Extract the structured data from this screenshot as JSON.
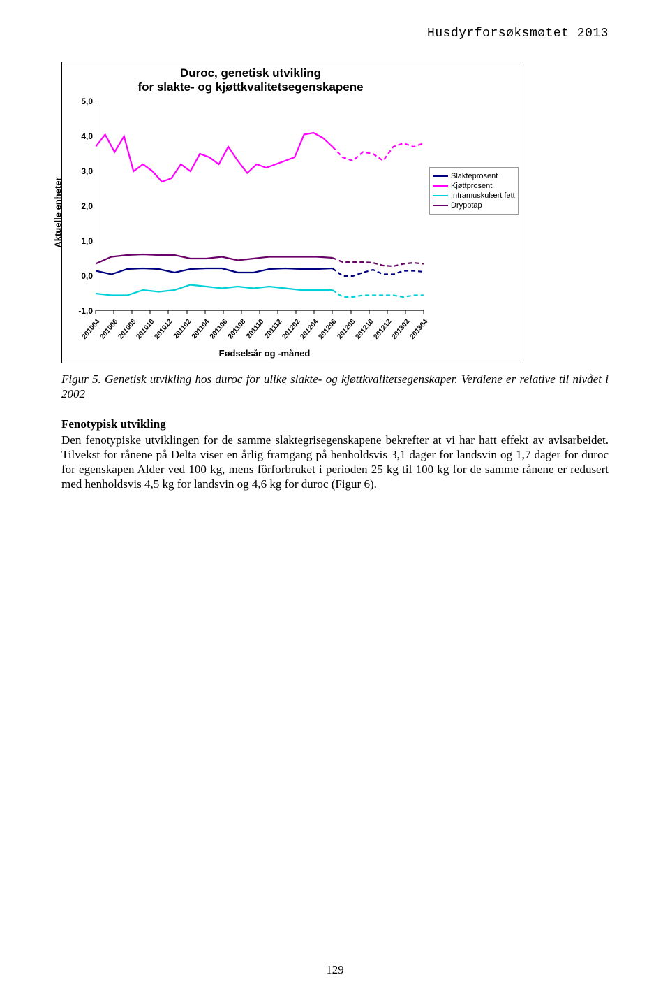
{
  "running_header": "Husdyrforsøksmøtet 2013",
  "page_number": "129",
  "chart": {
    "type": "line",
    "title_line1": "Duroc, genetisk utvikling",
    "title_line2": "for slakte- og kjøttkvalitetsegenskapene",
    "y_axis_label": "Aktuelle enheter",
    "x_axis_label": "Fødselsår og -måned",
    "ylim": [
      -1.0,
      5.0
    ],
    "ytick_step": 1.0,
    "y_ticks": [
      "-1,0",
      "0,0",
      "1,0",
      "2,0",
      "3,0",
      "4,0",
      "5,0"
    ],
    "x_ticks": [
      "201004",
      "201006",
      "201008",
      "201010",
      "201012",
      "201102",
      "201104",
      "201106",
      "201108",
      "201110",
      "201112",
      "201202",
      "201204",
      "201206",
      "201208",
      "201210",
      "201212",
      "201302",
      "201304"
    ],
    "background_color": "#ffffff",
    "axis_color": "#000000",
    "title_fontsize": 17,
    "label_fontsize": 13,
    "tick_fontsize": 11,
    "line_width": 2.2,
    "dash_pattern_projection": "6 4",
    "legend": {
      "items": [
        {
          "label": "Slakteprosent",
          "color": "#000080"
        },
        {
          "label": "Kjøttprosent",
          "color": "#ff00ff"
        },
        {
          "label": "Intramuskulært fett",
          "color": "#00d0d8"
        },
        {
          "label": "Drypptap",
          "color": "#6a006a"
        }
      ]
    },
    "series": {
      "slakteprosent": {
        "color": "#000080",
        "solid_values": [
          0.15,
          0.05,
          0.2,
          0.22,
          0.2,
          0.1,
          0.2,
          0.22,
          0.22,
          0.1,
          0.1,
          0.2,
          0.22,
          0.2,
          0.2,
          0.22
        ],
        "dashed_values": [
          0.22,
          0.0,
          0.0,
          0.1,
          0.18,
          0.05,
          0.05,
          0.15,
          0.15,
          0.12
        ]
      },
      "kjottprosent": {
        "color": "#ff00ff",
        "solid_values": [
          3.7,
          4.05,
          3.55,
          4.0,
          3.0,
          3.2,
          3.0,
          2.7,
          2.8,
          3.2,
          3.0,
          3.5,
          3.4,
          3.2,
          3.7,
          3.3,
          2.95,
          3.2,
          3.1,
          3.2,
          3.3,
          3.4,
          4.05,
          4.1,
          3.95,
          3.7
        ],
        "dashed_values": [
          3.7,
          3.4,
          3.3,
          3.55,
          3.5,
          3.3,
          3.7,
          3.8,
          3.7,
          3.8
        ]
      },
      "intramuskulart_fett": {
        "color": "#00d0d8",
        "solid_values": [
          -0.5,
          -0.55,
          -0.55,
          -0.4,
          -0.45,
          -0.4,
          -0.25,
          -0.3,
          -0.35,
          -0.3,
          -0.35,
          -0.3,
          -0.35,
          -0.4,
          -0.4,
          -0.4
        ],
        "dashed_values": [
          -0.4,
          -0.6,
          -0.6,
          -0.55,
          -0.55,
          -0.55,
          -0.55,
          -0.6,
          -0.55,
          -0.55
        ]
      },
      "drypptap": {
        "color": "#6a006a",
        "solid_values": [
          0.35,
          0.55,
          0.6,
          0.62,
          0.6,
          0.6,
          0.5,
          0.5,
          0.55,
          0.45,
          0.5,
          0.55,
          0.55,
          0.55,
          0.55,
          0.52
        ],
        "dashed_values": [
          0.52,
          0.4,
          0.4,
          0.4,
          0.38,
          0.3,
          0.28,
          0.35,
          0.38,
          0.35
        ]
      }
    }
  },
  "caption": {
    "label": "Figur 5.",
    "text": "Genetisk utvikling hos duroc for ulike slakte- og kjøttkvalitetsegenskaper. Verdiene er relative til nivået i 2002"
  },
  "section_heading": "Fenotypisk utvikling",
  "body": "Den fenotypiske utviklingen for de samme slaktegrisegenskapene bekrefter at vi har hatt effekt av avlsarbeidet. Tilvekst for rånene på Delta viser en årlig framgang på henholdsvis 3,1 dager for landsvin og 1,7 dager for duroc for egenskapen Alder ved 100 kg, mens fôrforbruket i perioden 25 kg til 100 kg for de samme rånene er redusert med henholdsvis 4,5 kg for landsvin og 4,6 kg for duroc (Figur 6)."
}
